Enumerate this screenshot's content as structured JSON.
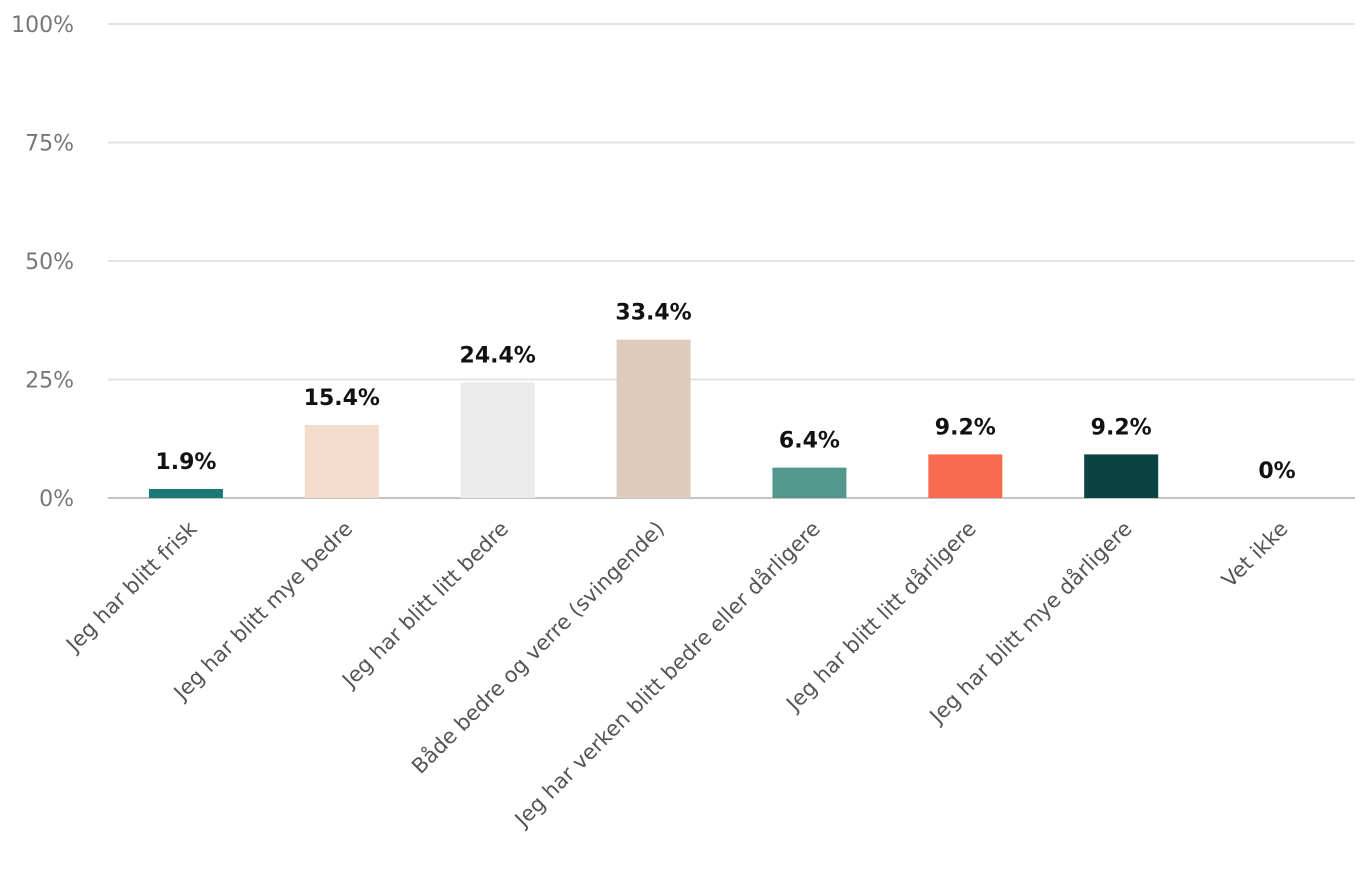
{
  "chart_data": {
    "type": "bar",
    "title": "",
    "xlabel": "",
    "ylabel": "",
    "ylim": [
      0,
      100
    ],
    "y_ticks": [
      "0%",
      "25%",
      "50%",
      "75%",
      "100%"
    ],
    "y_tick_values": [
      0,
      25,
      50,
      75,
      100
    ],
    "grid": true,
    "legend": "none",
    "categories": [
      "Jeg har blitt frisk",
      "Jeg har blitt mye bedre",
      "Jeg har blitt litt bedre",
      "Både bedre og verre (svingende)",
      "Jeg har verken blitt bedre eller dårligere",
      "Jeg har blitt litt dårligere",
      "Jeg har blitt mye dårligere",
      "Vet ikke"
    ],
    "values": [
      1.9,
      15.4,
      24.4,
      33.4,
      6.4,
      9.2,
      9.2,
      0
    ],
    "data_labels": [
      "1.9%",
      "15.4%",
      "24.4%",
      "33.4%",
      "6.4%",
      "9.2%",
      "9.2%",
      "0%"
    ],
    "colors": [
      "#1a7a78",
      "#f3dccb",
      "#ebebeb",
      "#dfcbbb",
      "#52968c",
      "#f96b50",
      "#0a4344",
      "#cccccc"
    ]
  }
}
